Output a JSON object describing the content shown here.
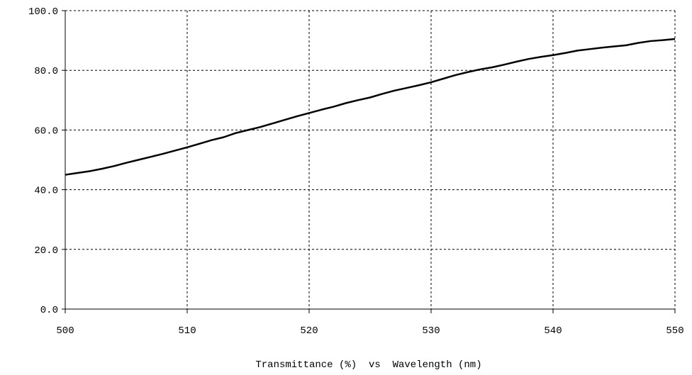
{
  "chart_data": {
    "type": "line",
    "x_label": "Transmittance (%)  vs  Wavelength (nm)",
    "x": [
      500,
      501,
      502,
      503,
      504,
      505,
      506,
      507,
      508,
      509,
      510,
      511,
      512,
      513,
      514,
      515,
      516,
      517,
      518,
      519,
      520,
      521,
      522,
      523,
      524,
      525,
      526,
      527,
      528,
      529,
      530,
      531,
      532,
      533,
      534,
      535,
      536,
      537,
      538,
      539,
      540,
      541,
      542,
      543,
      544,
      545,
      546,
      547,
      548,
      549,
      550
    ],
    "series": [
      {
        "color": "#000000",
        "values": [
          45.0,
          45.6,
          46.2,
          47.0,
          47.9,
          49.0,
          50.0,
          51.0,
          52.0,
          53.1,
          54.2,
          55.4,
          56.6,
          57.6,
          59.0,
          60.0,
          61.0,
          62.2,
          63.4,
          64.6,
          65.7,
          66.8,
          67.8,
          69.0,
          70.0,
          70.9,
          72.1,
          73.2,
          74.1,
          75.0,
          76.0,
          77.2,
          78.4,
          79.4,
          80.3,
          81.0,
          81.9,
          82.9,
          83.8,
          84.5,
          85.1,
          85.8,
          86.6,
          87.1,
          87.6,
          88.0,
          88.4,
          89.2,
          89.8,
          90.1,
          90.5
        ]
      }
    ],
    "xlim": [
      500,
      550
    ],
    "xticks": [
      500,
      510,
      520,
      530,
      540,
      550
    ],
    "ylim": [
      0,
      100
    ],
    "yticks": [
      {
        "value": 0,
        "label": "0.0"
      },
      {
        "value": 20,
        "label": "20.0"
      },
      {
        "value": 40,
        "label": "40.0"
      },
      {
        "value": 60,
        "label": "60.0"
      },
      {
        "value": 80,
        "label": "80.0"
      },
      {
        "value": 100,
        "label": "100.0"
      }
    ],
    "grid": true
  }
}
